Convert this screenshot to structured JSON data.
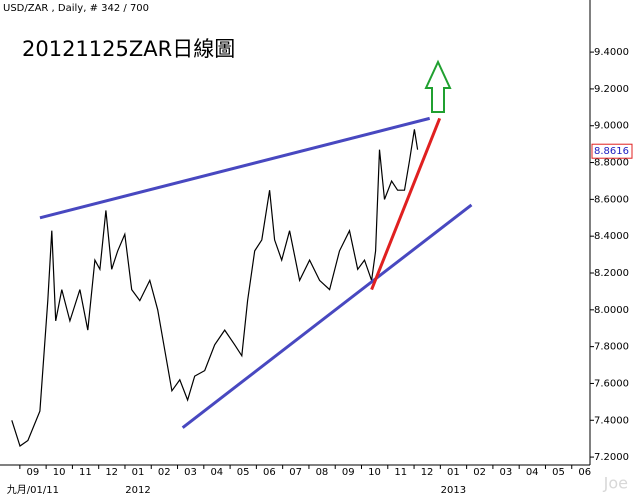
{
  "chart_data": {
    "type": "line",
    "header": "USD/ZAR , Daily, # 342 / 700",
    "title": "20121125ZAR日線圖",
    "watermark": "Joe",
    "last_price": {
      "value": 8.8616,
      "label": "8.8616"
    },
    "xlim": [
      -1.25,
      21.2
    ],
    "ylim": [
      7.157,
      9.683
    ],
    "xticks": [
      {
        "value": 0,
        "label": "09"
      },
      {
        "value": 1,
        "label": "10"
      },
      {
        "value": 2,
        "label": "11"
      },
      {
        "value": 3,
        "label": "12"
      },
      {
        "value": 4,
        "label": "01"
      },
      {
        "value": 5,
        "label": "02"
      },
      {
        "value": 6,
        "label": "03"
      },
      {
        "value": 7,
        "label": "04"
      },
      {
        "value": 8,
        "label": "05"
      },
      {
        "value": 9,
        "label": "06"
      },
      {
        "value": 10,
        "label": "07"
      },
      {
        "value": 11,
        "label": "08"
      },
      {
        "value": 12,
        "label": "09"
      },
      {
        "value": 13,
        "label": "10"
      },
      {
        "value": 14,
        "label": "11"
      },
      {
        "value": 15,
        "label": "12"
      },
      {
        "value": 16,
        "label": "01"
      },
      {
        "value": 17,
        "label": "02"
      },
      {
        "value": 18,
        "label": "03"
      },
      {
        "value": 19,
        "label": "04"
      },
      {
        "value": 20,
        "label": "05"
      },
      {
        "value": 21,
        "label": "06"
      }
    ],
    "x_period_labels": [
      {
        "value": 0,
        "label": "九月/01/11"
      },
      {
        "value": 4,
        "label": "2012"
      },
      {
        "value": 16,
        "label": "2013"
      }
    ],
    "yticks": [
      {
        "value": 7.2,
        "label": "7.2000"
      },
      {
        "value": 7.4,
        "label": "7.4000"
      },
      {
        "value": 7.6,
        "label": "7.6000"
      },
      {
        "value": 7.8,
        "label": "7.8000"
      },
      {
        "value": 8.0,
        "label": "8.0000"
      },
      {
        "value": 8.2,
        "label": "8.2000"
      },
      {
        "value": 8.4,
        "label": "8.4000"
      },
      {
        "value": 8.6,
        "label": "8.6000"
      },
      {
        "value": 8.8,
        "label": "8.8000"
      },
      {
        "value": 9.0,
        "label": "9.0000"
      },
      {
        "value": 9.2,
        "label": "9.2000"
      },
      {
        "value": 9.4,
        "label": "9.4000"
      }
    ],
    "series": [
      {
        "name": "USD/ZAR",
        "color": "#000000",
        "x": [
          -0.8,
          -0.49,
          -0.19,
          0.27,
          0.57,
          0.72,
          0.87,
          1.1,
          1.41,
          1.79,
          2.09,
          2.36,
          2.55,
          2.78,
          3.0,
          3.23,
          3.5,
          3.76,
          4.07,
          4.45,
          4.75,
          5.02,
          5.29,
          5.59,
          5.89,
          6.16,
          6.54,
          6.92,
          7.3,
          7.68,
          7.95,
          8.17,
          8.44,
          8.71,
          9.01,
          9.2,
          9.47,
          9.77,
          10.15,
          10.53,
          10.91,
          11.29,
          11.67,
          12.05,
          12.36,
          12.62,
          12.89,
          13.04,
          13.19,
          13.38,
          13.65,
          13.88,
          14.14,
          14.33,
          14.52,
          14.64
        ],
        "values": [
          7.4,
          7.26,
          7.29,
          7.45,
          8.05,
          8.43,
          7.94,
          8.11,
          7.94,
          8.11,
          7.89,
          8.27,
          8.22,
          8.54,
          8.22,
          8.32,
          8.41,
          8.11,
          8.05,
          8.16,
          8.0,
          7.78,
          7.56,
          7.62,
          7.51,
          7.64,
          7.67,
          7.81,
          7.89,
          7.81,
          7.75,
          8.05,
          8.32,
          8.38,
          8.65,
          8.38,
          8.27,
          8.43,
          8.16,
          8.27,
          8.16,
          8.11,
          8.32,
          8.43,
          8.22,
          8.27,
          8.16,
          8.32,
          8.87,
          8.6,
          8.7,
          8.65,
          8.65,
          8.81,
          8.98,
          8.87
        ]
      }
    ],
    "trendlines": [
      {
        "color": "#4848c0",
        "x": [
          0.27,
          15.1
        ],
        "y": [
          8.5,
          9.04
        ]
      },
      {
        "color": "#4848c0",
        "x": [
          5.7,
          16.69
        ],
        "y": [
          7.36,
          8.57
        ]
      },
      {
        "color": "#e02020",
        "x": [
          12.89,
          15.48
        ],
        "y": [
          8.11,
          9.04
        ]
      }
    ]
  }
}
